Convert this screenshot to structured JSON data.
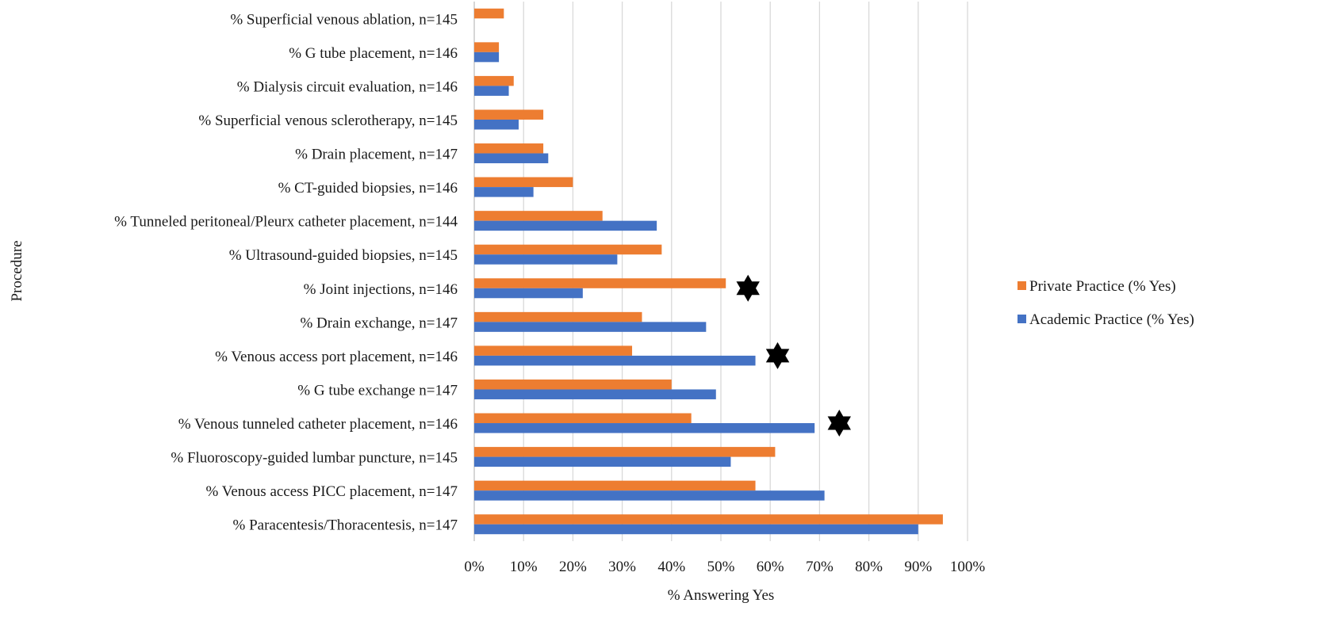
{
  "chart_data": {
    "type": "bar",
    "orientation": "horizontal",
    "xlabel": "% Answering Yes",
    "ylabel": "Procedure",
    "xlim": [
      0,
      100
    ],
    "x_ticks": [
      "0%",
      "10%",
      "20%",
      "30%",
      "40%",
      "50%",
      "60%",
      "70%",
      "80%",
      "90%",
      "100%"
    ],
    "grid": "vertical",
    "legend_position": "right",
    "categories": [
      "% Superficial venous ablation, n=145",
      "% G tube placement, n=146",
      "% Dialysis circuit evaluation, n=146",
      "% Superficial venous sclerotherapy, n=145",
      "% Drain placement, n=147",
      "% CT-guided biopsies, n=146",
      "% Tunneled peritoneal/Pleurx catheter placement, n=144",
      "% Ultrasound-guided biopsies, n=145",
      "% Joint injections, n=146",
      "% Drain exchange, n=147",
      "% Venous access port placement, n=146",
      "% G tube exchange n=147",
      "% Venous tunneled catheter placement, n=146",
      "% Fluoroscopy-guided lumbar puncture, n=145",
      "% Venous access PICC placement, n=147",
      "% Paracentesis/Thoracentesis, n=147"
    ],
    "series": [
      {
        "name": "Private Practice (% Yes)",
        "color": "#ed7d31",
        "values": [
          6,
          5,
          8,
          14,
          14,
          20,
          26,
          38,
          51,
          34,
          32,
          40,
          44,
          61,
          57,
          95
        ]
      },
      {
        "name": "Academic Practice (% Yes)",
        "color": "#4472c4",
        "values": [
          0,
          5,
          7,
          9,
          15,
          12,
          37,
          29,
          22,
          47,
          57,
          49,
          69,
          52,
          71,
          90
        ]
      }
    ],
    "legend_order": [
      "Private Practice (% Yes)",
      "Academic Practice (% Yes)"
    ],
    "annotations": [
      {
        "marker": "star",
        "category_index": 8,
        "at_value": 55.5
      },
      {
        "marker": "star",
        "category_index": 10,
        "at_value": 61.5
      },
      {
        "marker": "star",
        "category_index": 12,
        "at_value": 74
      }
    ]
  }
}
